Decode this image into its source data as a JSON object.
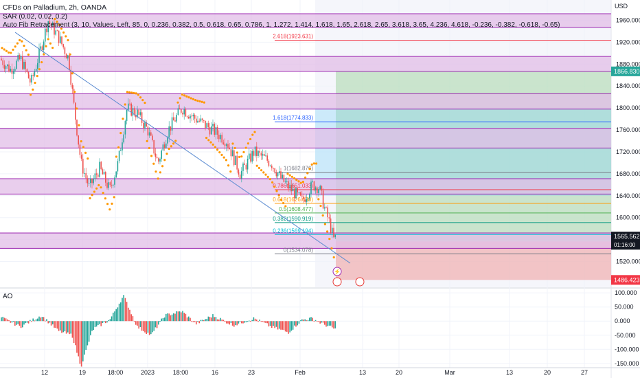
{
  "header": {
    "title": "CFDs on Palladium, 2h, OANDA",
    "indicator_sar": "SAR (0.02, 0.02, 0.2)",
    "indicator_fib": "Auto Fib Retracement (3, 10, Values, Left, 85, 0, 0.236, 0.382, 0.5, 0.618, 0.65, 0.786, 1, 1.272, 1.414, 1.618, 1.65, 2.618, 2.65, 3.618, 3.65, 4.236, 4.618, -0.236, -0.382, -0.618, -0.65)"
  },
  "colors": {
    "up": "#26a69a",
    "down": "#ef5350",
    "sar": "#ff9800",
    "band_fill": "#e1bee7",
    "band_line": "#9c27b0",
    "trendline": "#5b8bd1",
    "target_green": "#a5d6a7",
    "stop_red": "#ef9a9a",
    "price_label": "#131722"
  },
  "chart_data": {
    "type": "candlestick",
    "main_pane": {
      "currency": "USD",
      "y_ticks": [
        1520,
        1560,
        1600,
        1640,
        1680,
        1720,
        1760,
        1800,
        1840,
        1880,
        1920,
        1960
      ],
      "ylim": [
        1473,
        1997
      ],
      "x_tick_labels": [
        "12",
        "19",
        "18:00",
        "2023",
        "18:00",
        "16",
        "23",
        "Feb",
        "13",
        "20",
        "Mar",
        "13",
        "20",
        "27"
      ],
      "current_price": "1565.562",
      "countdown": "01:16:00",
      "price_labels": [
        {
          "value": "1866.830",
          "price": 1866.83,
          "kind": "target"
        },
        {
          "value": "1556.544",
          "price": 1556.54,
          "kind": "entry"
        },
        {
          "value": "1486.423",
          "price": 1486.42,
          "kind": "stop"
        }
      ],
      "fib_levels": [
        {
          "label": "2.618(1923.631)",
          "price": 1923.63
        },
        {
          "label": "1.618(1774.833)",
          "price": 1774.83
        },
        {
          "label": "1(1682.876)",
          "price": 1682.88
        },
        {
          "label": "0.786(1651.033)",
          "price": 1651.03
        },
        {
          "label": "0.618(1626.038)",
          "price": 1626.04
        },
        {
          "label": "0.5(1608.477)",
          "price": 1608.48
        },
        {
          "label": "0.382(1590.919)",
          "price": 1590.92
        },
        {
          "label": "0.236(1569.194)",
          "price": 1569.19
        },
        {
          "label": "0(1534.078)",
          "price": 1534.08
        }
      ],
      "zones": [
        {
          "top": 1972,
          "bottom": 1947
        },
        {
          "top": 1894,
          "bottom": 1867
        },
        {
          "top": 1826,
          "bottom": 1798
        },
        {
          "top": 1763,
          "bottom": 1727
        },
        {
          "top": 1671,
          "bottom": 1643
        },
        {
          "top": 1572,
          "bottom": 1544
        }
      ],
      "trendline": [
        {
          "x_label": "start",
          "price": 1938
        },
        {
          "x_label": "end",
          "price": 1517
        }
      ],
      "position": {
        "target": 1866.83,
        "entry": 1556.54,
        "stop": 1486.42
      }
    },
    "ao_pane": {
      "label": "AO",
      "y_ticks": [
        "100.000",
        "50.000",
        "0.000",
        "-50.000",
        "-100.000",
        "-150.000"
      ],
      "y_values": [
        100,
        50,
        0,
        -50,
        -100,
        -150
      ],
      "ylim": [
        -165,
        115
      ]
    }
  }
}
